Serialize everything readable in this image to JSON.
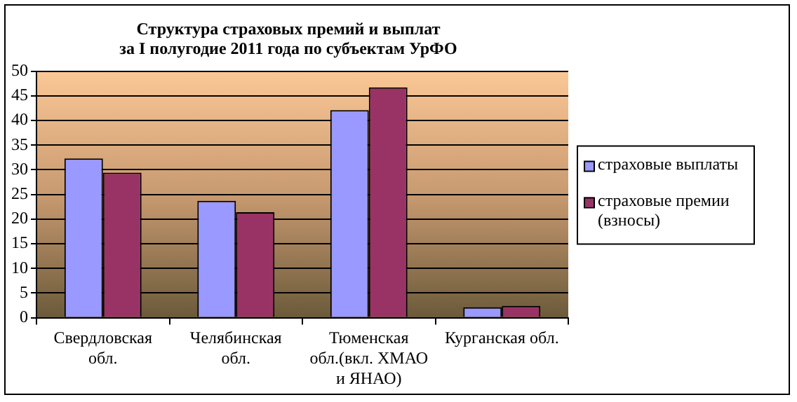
{
  "chart_data": {
    "type": "bar",
    "title": "Структура страховых премий и выплат\nза I полугодие 2011 года по субъектам УрФО",
    "categories": [
      "Свердловская обл.",
      "Челябинская обл.",
      "Тюменская обл.(вкл. ХМАО и ЯНАО)",
      "Курганская обл."
    ],
    "series": [
      {
        "name": "страховые выплаты",
        "color": "#9999ff",
        "values": [
          32.3,
          23.7,
          42.1,
          2.1
        ]
      },
      {
        "name": "страховые премии (взносы)",
        "color": "#993366",
        "values": [
          29.4,
          21.4,
          46.7,
          2.4
        ]
      }
    ],
    "ylim": [
      0,
      50
    ],
    "yticks": [
      0,
      5,
      10,
      15,
      20,
      25,
      30,
      35,
      40,
      45,
      50
    ],
    "grid": "y",
    "legend": "right"
  }
}
